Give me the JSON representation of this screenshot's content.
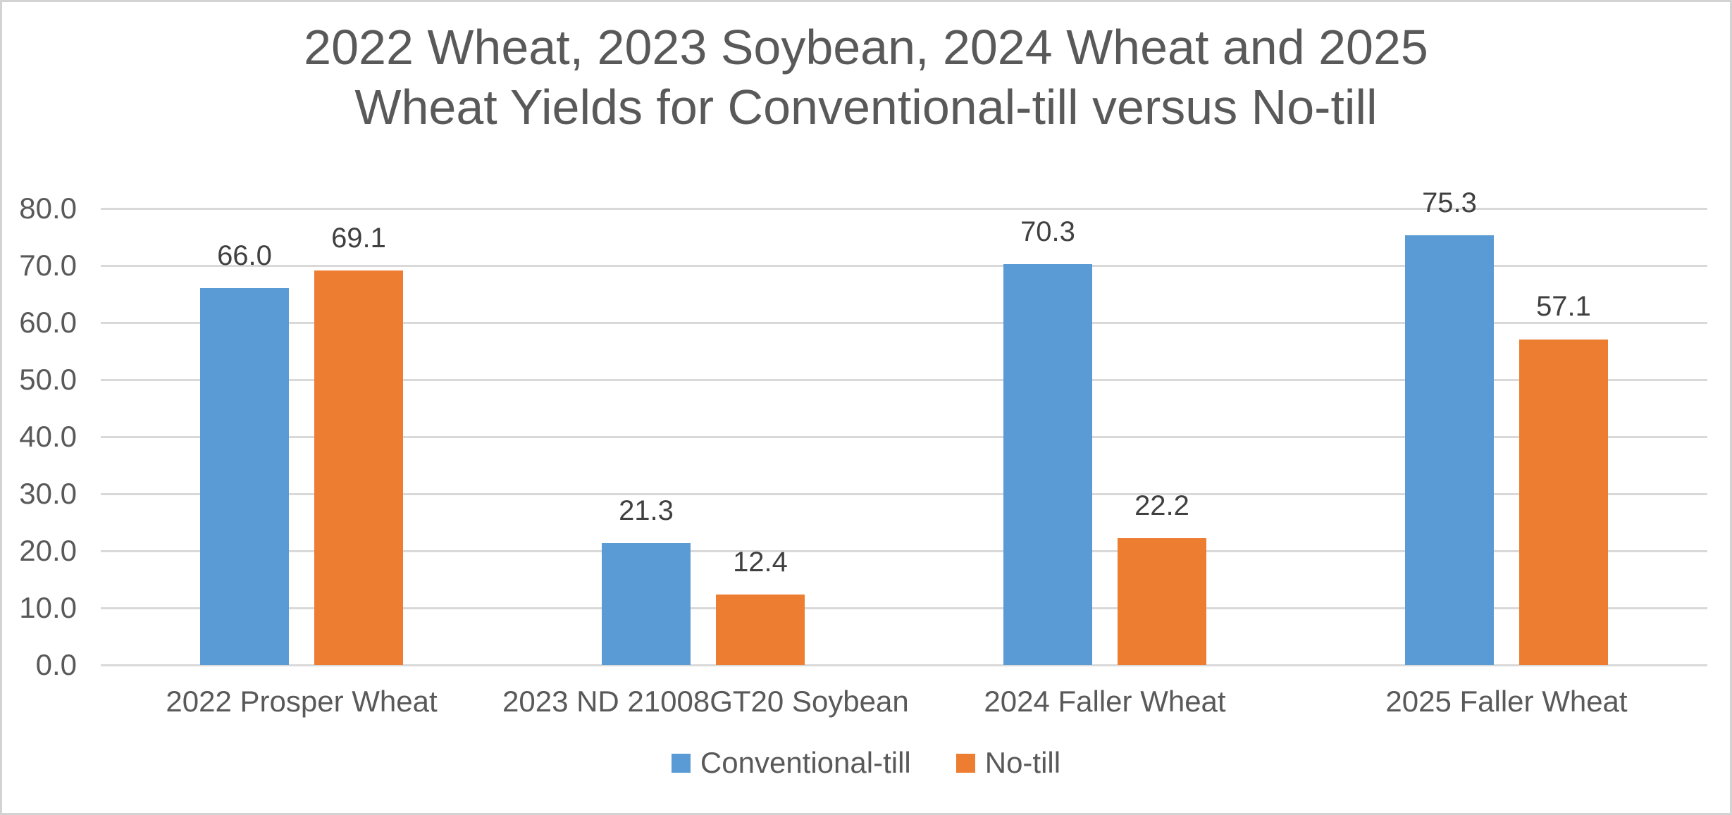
{
  "chart_data": {
    "type": "bar",
    "title": "2022 Wheat, 2023 Soybean, 2024 Wheat and 2025 Wheat Yields for Conventional-till versus No-till",
    "categories": [
      "2022 Prosper Wheat",
      "2023 ND 21008GT20 Soybean",
      "2024 Faller Wheat",
      "2025 Faller Wheat"
    ],
    "series": [
      {
        "name": "Conventional-till",
        "color": "#5B9BD5",
        "values": [
          66.0,
          21.3,
          70.3,
          75.3
        ]
      },
      {
        "name": "No-till",
        "color": "#ED7D31",
        "values": [
          69.1,
          12.4,
          22.2,
          57.1
        ]
      }
    ],
    "xlabel": "",
    "ylabel": "",
    "ylim": [
      0,
      80
    ],
    "yticks": [
      0,
      10,
      20,
      30,
      40,
      50,
      60,
      70,
      80
    ],
    "ytick_labels": [
      "0.0",
      "10.0",
      "20.0",
      "30.0",
      "40.0",
      "50.0",
      "60.0",
      "70.0",
      "80.0"
    ],
    "value_label_decimals": 1,
    "grid": "horizontal",
    "legend_position": "bottom"
  },
  "colors": {
    "series_conventional_till": "#5B9BD5",
    "series_no_till": "#ED7D31",
    "title_text": "#595959",
    "axis_text": "#595959",
    "value_label_text": "#404040",
    "gridline": "#D9D9D9",
    "background": "#FFFFFF",
    "border": "#D3D3D3"
  }
}
